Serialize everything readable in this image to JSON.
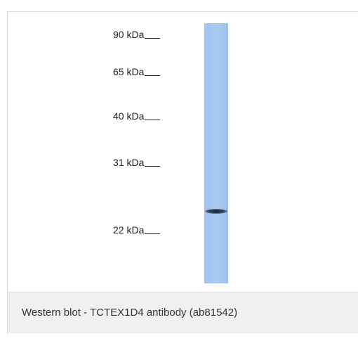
{
  "blot": {
    "markers": [
      {
        "label": "90 kDa"
      },
      {
        "label": "65 kDa"
      },
      {
        "label": "40 kDa"
      },
      {
        "label": "31 kDa"
      },
      {
        "label": "22 kDa"
      }
    ],
    "lane_color": "#a6c8ef",
    "band_color": "#1f2b3d"
  },
  "caption": {
    "text": "Western blot - TCTEX1D4 antibody (ab81542)"
  }
}
